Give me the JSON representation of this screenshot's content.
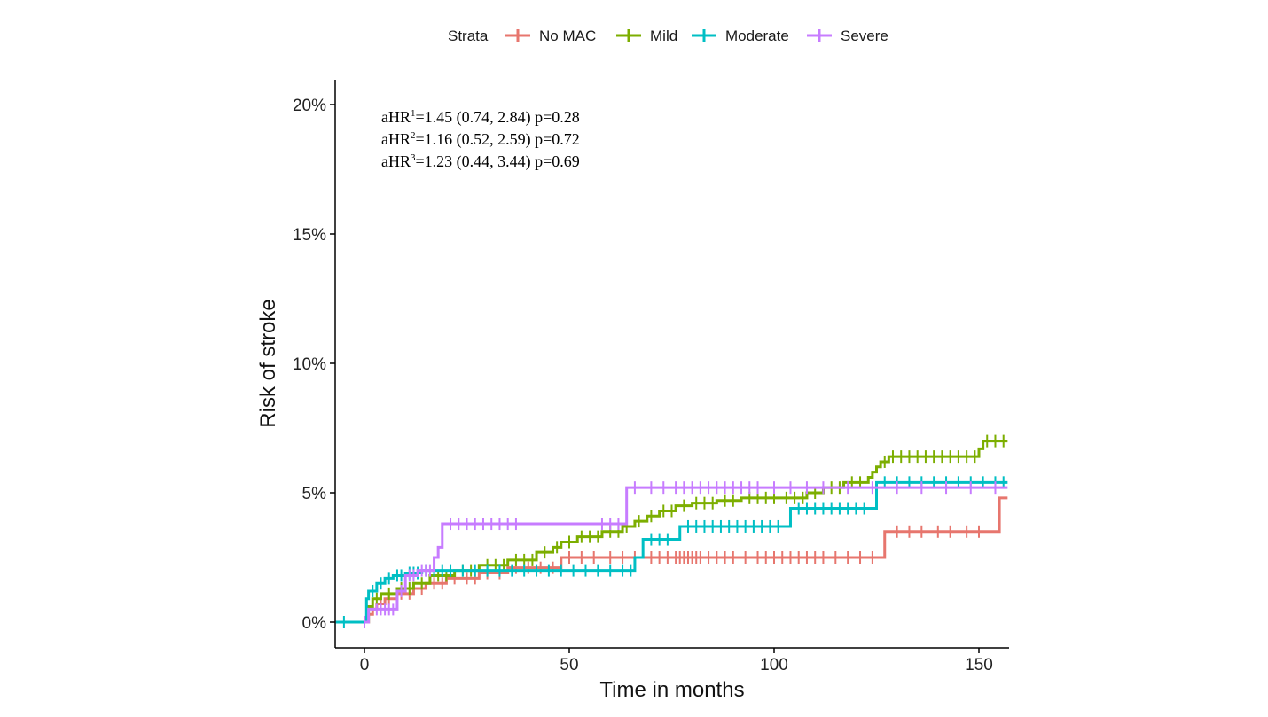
{
  "chart_data": {
    "type": "line",
    "subtype": "kaplan-meier cumulative incidence (step)",
    "title": "",
    "xlabel": "Time in months",
    "ylabel": "Risk of stroke",
    "xlim": [
      -7,
      157
    ],
    "ylim": [
      -0.6,
      21
    ],
    "x_ticks": [
      0,
      50,
      100,
      150
    ],
    "x_tick_labels": [
      "0",
      "50",
      "100",
      "150"
    ],
    "y_ticks": [
      0,
      5,
      10,
      15,
      20
    ],
    "y_tick_labels": [
      "0%",
      "5%",
      "10%",
      "15%",
      "20%"
    ],
    "grid": false,
    "legend": {
      "title": "Strata",
      "placement": "top",
      "entries": [
        "No MAC",
        "Mild",
        "Moderate",
        "Severe"
      ]
    },
    "annotations": [
      {
        "prefix": "aHR",
        "sup": "1",
        "text": "=1.45 (0.74, 2.84) p=0.28"
      },
      {
        "prefix": "aHR",
        "sup": "2",
        "text": "=1.16 (0.52, 2.59) p=0.72"
      },
      {
        "prefix": "aHR",
        "sup": "3",
        "text": "=1.23 (0.44, 3.44) p=0.69"
      }
    ],
    "series": [
      {
        "name": "No MAC",
        "color": "#E7766E",
        "steps": [
          [
            0,
            0
          ],
          [
            1,
            0.3
          ],
          [
            2,
            0.5
          ],
          [
            3,
            0.7
          ],
          [
            5,
            0.9
          ],
          [
            8,
            1.1
          ],
          [
            12,
            1.3
          ],
          [
            15,
            1.5
          ],
          [
            20,
            1.7
          ],
          [
            28,
            1.9
          ],
          [
            35,
            2.1
          ],
          [
            48,
            2.5
          ],
          [
            127,
            3.5
          ],
          [
            155,
            4.8
          ],
          [
            157,
            4.8
          ]
        ],
        "censor_x": [
          4,
          6,
          9,
          11,
          14,
          17,
          19,
          22,
          25,
          27,
          30,
          33,
          37,
          40,
          43,
          46,
          50,
          53,
          56,
          60,
          63,
          66,
          70,
          72,
          74,
          76,
          77,
          78,
          79,
          80,
          81,
          82,
          84,
          86,
          88,
          90,
          93,
          96,
          98,
          100,
          102,
          104,
          106,
          108,
          110,
          112,
          115,
          118,
          121,
          124,
          130,
          133,
          136,
          140,
          143,
          147,
          150
        ]
      },
      {
        "name": "Mild",
        "color": "#7CAE00",
        "steps": [
          [
            0,
            0
          ],
          [
            1,
            0.6
          ],
          [
            2,
            0.9
          ],
          [
            4,
            1.1
          ],
          [
            8,
            1.3
          ],
          [
            12,
            1.5
          ],
          [
            16,
            1.8
          ],
          [
            22,
            2.0
          ],
          [
            28,
            2.2
          ],
          [
            35,
            2.4
          ],
          [
            42,
            2.7
          ],
          [
            46,
            2.9
          ],
          [
            48,
            3.1
          ],
          [
            52,
            3.3
          ],
          [
            58,
            3.5
          ],
          [
            63,
            3.7
          ],
          [
            66,
            3.9
          ],
          [
            69,
            4.1
          ],
          [
            72,
            4.3
          ],
          [
            76,
            4.5
          ],
          [
            80,
            4.6
          ],
          [
            86,
            4.7
          ],
          [
            92,
            4.8
          ],
          [
            108,
            5.0
          ],
          [
            112,
            5.2
          ],
          [
            117,
            5.4
          ],
          [
            123,
            5.6
          ],
          [
            124,
            5.8
          ],
          [
            125,
            6.0
          ],
          [
            126,
            6.2
          ],
          [
            128,
            6.4
          ],
          [
            150,
            6.7
          ],
          [
            151,
            7.0
          ],
          [
            157,
            7.0
          ]
        ],
        "censor_x": [
          3,
          6,
          9,
          11,
          14,
          18,
          20,
          24,
          26,
          30,
          32,
          34,
          37,
          39,
          41,
          44,
          47,
          50,
          53,
          55,
          57,
          60,
          62,
          64,
          67,
          70,
          73,
          75,
          78,
          81,
          83,
          85,
          88,
          90,
          94,
          96,
          98,
          100,
          103,
          105,
          107,
          110,
          114,
          116,
          119,
          121,
          127,
          129,
          131,
          133,
          135,
          137,
          139,
          141,
          143,
          145,
          147,
          149,
          152,
          154,
          156
        ]
      },
      {
        "name": "Moderate",
        "color": "#00BFC4",
        "steps": [
          [
            -7,
            0
          ],
          [
            0,
            0
          ],
          [
            0.5,
            0.9
          ],
          [
            1,
            1.2
          ],
          [
            3,
            1.5
          ],
          [
            5,
            1.7
          ],
          [
            7,
            1.8
          ],
          [
            10,
            1.9
          ],
          [
            14,
            2.0
          ],
          [
            66,
            2.5
          ],
          [
            68,
            3.2
          ],
          [
            77,
            3.7
          ],
          [
            104,
            4.4
          ],
          [
            125,
            5.4
          ],
          [
            157,
            5.4
          ]
        ],
        "censor_x": [
          -5,
          2,
          4,
          6,
          8,
          9,
          11,
          12,
          13,
          15,
          17,
          19,
          21,
          24,
          27,
          30,
          33,
          36,
          39,
          42,
          45,
          48,
          51,
          54,
          57,
          60,
          63,
          65,
          70,
          72,
          74,
          79,
          81,
          83,
          85,
          87,
          89,
          91,
          93,
          95,
          97,
          99,
          101,
          106,
          108,
          110,
          112,
          114,
          116,
          118,
          120,
          122,
          127,
          130,
          133,
          136,
          139,
          142,
          145,
          148,
          151,
          154,
          156
        ]
      },
      {
        "name": "Severe",
        "color": "#C77CFF",
        "steps": [
          [
            0,
            0
          ],
          [
            1,
            0.5
          ],
          [
            2,
            0.5
          ],
          [
            8,
            1.2
          ],
          [
            10,
            1.8
          ],
          [
            13,
            2.0
          ],
          [
            17,
            2.5
          ],
          [
            18,
            2.9
          ],
          [
            19,
            3.8
          ],
          [
            64,
            5.2
          ],
          [
            157,
            5.2
          ]
        ],
        "censor_x": [
          0,
          3,
          4,
          5,
          6,
          7,
          9,
          11,
          12,
          14,
          15,
          16,
          21,
          23,
          25,
          27,
          29,
          31,
          33,
          35,
          37,
          58,
          60,
          62,
          66,
          70,
          73,
          76,
          78,
          80,
          82,
          84,
          86,
          88,
          90,
          92,
          94,
          96,
          100,
          104,
          108,
          112,
          118,
          124,
          130,
          136,
          142,
          148,
          154
        ]
      }
    ]
  }
}
